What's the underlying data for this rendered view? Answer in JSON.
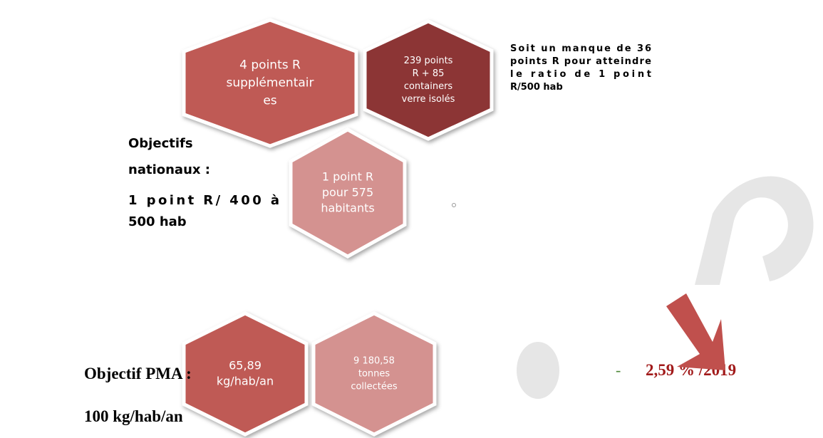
{
  "hexagons": [
    {
      "lines": [
        "4 points R",
        "supplémentair",
        "es"
      ]
    },
    {
      "lines": [
        "239 points",
        "R + 85",
        "containers",
        "verre isolés"
      ]
    },
    {
      "lines": [
        "1 point R",
        "pour 575",
        "habitants"
      ]
    },
    {
      "lines": [
        "65,89",
        "kg/hab/an"
      ]
    },
    {
      "lines": [
        "9 180,58",
        "tonnes",
        "collectées"
      ]
    }
  ],
  "note": [
    "Soit un manque de 36",
    "points R pour atteindre",
    "le ratio de 1 point",
    "R/500 hab"
  ],
  "national": {
    "title": [
      "Objectifs",
      "nationaux :"
    ],
    "target": [
      "1 point R/ 400 à",
      "500 hab"
    ]
  },
  "pma": {
    "title": "Objectif PMA :",
    "target": "100 kg/hab/an"
  },
  "trend": {
    "dash": "-",
    "value": "2,59 % /2019"
  }
}
